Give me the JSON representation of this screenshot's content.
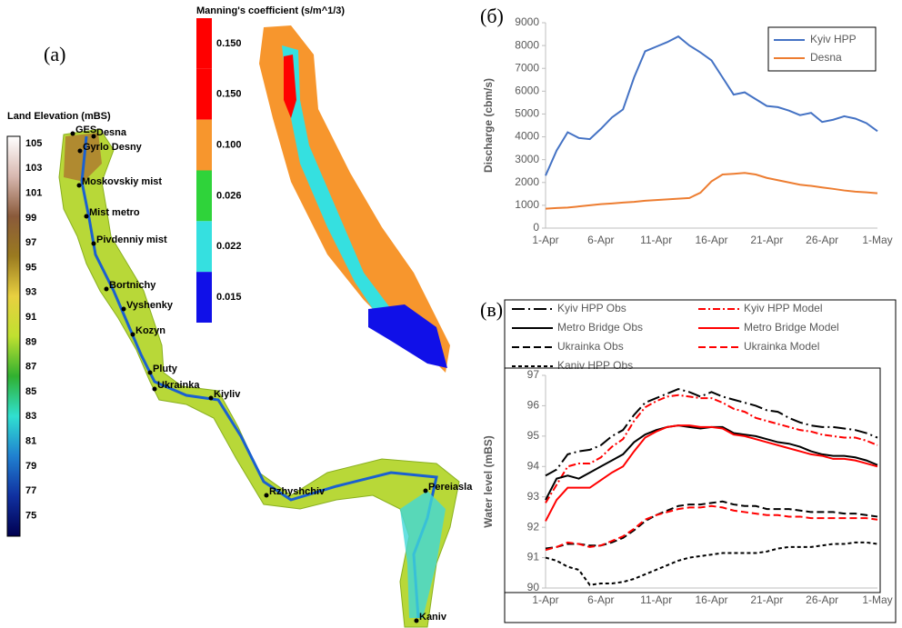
{
  "panel_labels": [
    "(a)",
    "(б)",
    "(в)"
  ],
  "elevation_map": {
    "title": "Land Elevation (mBS)",
    "legend_ticks": [
      105,
      103,
      101,
      99,
      97,
      95,
      93,
      91,
      89,
      87,
      85,
      83,
      81,
      79,
      77,
      75
    ],
    "places": [
      "GES",
      "Desna",
      "Gyrlo Desny",
      "Moskovskiy mist",
      "Mist metro",
      "Pivdenniy mist",
      "Bortnichy",
      "Vyshenky",
      "Kozyn",
      "Pluty",
      "Ukrainka",
      "Kiyliv",
      "Rzhyshchiv",
      "Pereiasla",
      "Kaniv"
    ]
  },
  "manning_map": {
    "title": "Manning's coefficient (s/m^1/3)",
    "legend": [
      {
        "label": "0.150",
        "color": "#ff0000"
      },
      {
        "label": "0.150",
        "color": "#ff0000"
      },
      {
        "label": "0.100",
        "color": "#f7962d"
      },
      {
        "label": "0.026",
        "color": "#2fd33a"
      },
      {
        "label": "0.022",
        "color": "#35e0e0"
      },
      {
        "label": "0.015",
        "color": "#1010e8"
      }
    ]
  },
  "chart_data": [
    {
      "type": "line",
      "ylabel": "Discharge (cbm/s)",
      "legend": "upper right",
      "categories": [
        "1-Apr",
        null,
        null,
        null,
        null,
        "6-Apr",
        null,
        null,
        null,
        null,
        "11-Apr",
        null,
        null,
        null,
        null,
        "16-Apr",
        null,
        null,
        null,
        null,
        "21-Apr",
        null,
        null,
        null,
        null,
        "26-Apr",
        null,
        null,
        null,
        null,
        "1-May"
      ],
      "ylim": [
        0,
        9000
      ],
      "yticks": [
        0,
        1000,
        2000,
        3000,
        4000,
        5000,
        6000,
        7000,
        8000,
        9000
      ],
      "series": [
        {
          "name": "Kyiv HPP",
          "color": "#4472c4",
          "dash": "solid",
          "values": [
            2300,
            3400,
            4200,
            3950,
            3900,
            4350,
            4850,
            5200,
            6600,
            7750,
            7950,
            8150,
            8400,
            8000,
            7700,
            7350,
            6600,
            5850,
            5950,
            5650,
            5350,
            5300,
            5150,
            4950,
            5050,
            4650,
            4750,
            4900,
            4800,
            4600,
            4250
          ]
        },
        {
          "name": "Desna",
          "color": "#ed7d31",
          "dash": "solid",
          "values": [
            850,
            880,
            900,
            950,
            1000,
            1050,
            1080,
            1120,
            1150,
            1200,
            1230,
            1260,
            1290,
            1320,
            1550,
            2050,
            2350,
            2380,
            2420,
            2350,
            2200,
            2100,
            2000,
            1900,
            1850,
            1780,
            1720,
            1650,
            1600,
            1570,
            1530
          ]
        }
      ]
    },
    {
      "type": "line",
      "ylabel": "Water level (mBS)",
      "legend": "above",
      "categories": [
        "1-Apr",
        null,
        null,
        null,
        null,
        "6-Apr",
        null,
        null,
        null,
        null,
        "11-Apr",
        null,
        null,
        null,
        null,
        "16-Apr",
        null,
        null,
        null,
        null,
        "21-Apr",
        null,
        null,
        null,
        null,
        "26-Apr",
        null,
        null,
        null,
        null,
        "1-May"
      ],
      "ylim": [
        90,
        97
      ],
      "yticks": [
        90,
        91,
        92,
        93,
        94,
        95,
        96,
        97
      ],
      "series": [
        {
          "name": "Kyiv HPP Obs",
          "color": "#000000",
          "dash": "long-dash-dot",
          "values": [
            93.7,
            93.9,
            94.4,
            94.5,
            94.55,
            94.7,
            95.0,
            95.2,
            95.7,
            96.1,
            96.25,
            96.4,
            96.55,
            96.45,
            96.3,
            96.45,
            96.3,
            96.2,
            96.1,
            96.0,
            95.85,
            95.8,
            95.6,
            95.45,
            95.35,
            95.3,
            95.3,
            95.25,
            95.2,
            95.1,
            94.95
          ]
        },
        {
          "name": "Kyiv HPP Model",
          "color": "#ff0000",
          "dash": "dash-dot",
          "values": [
            92.8,
            93.4,
            94.0,
            94.1,
            94.1,
            94.3,
            94.65,
            94.9,
            95.5,
            95.95,
            96.15,
            96.3,
            96.35,
            96.3,
            96.25,
            96.25,
            96.1,
            95.9,
            95.8,
            95.6,
            95.5,
            95.4,
            95.3,
            95.2,
            95.15,
            95.05,
            95.0,
            94.95,
            94.95,
            94.85,
            94.7
          ]
        },
        {
          "name": "Metro Bridge Obs",
          "color": "#000000",
          "dash": "solid",
          "values": [
            92.9,
            93.6,
            93.7,
            93.6,
            93.8,
            94.0,
            94.2,
            94.4,
            94.8,
            95.05,
            95.2,
            95.3,
            95.35,
            95.3,
            95.25,
            95.3,
            95.3,
            95.1,
            95.05,
            95.0,
            94.9,
            94.8,
            94.75,
            94.65,
            94.5,
            94.4,
            94.35,
            94.35,
            94.3,
            94.2,
            94.05
          ]
        },
        {
          "name": "Metro Bridge Model",
          "color": "#ff0000",
          "dash": "solid",
          "values": [
            92.2,
            92.9,
            93.3,
            93.3,
            93.3,
            93.55,
            93.8,
            94.0,
            94.5,
            94.95,
            95.15,
            95.3,
            95.35,
            95.35,
            95.3,
            95.3,
            95.25,
            95.05,
            95.0,
            94.9,
            94.8,
            94.7,
            94.6,
            94.5,
            94.4,
            94.35,
            94.25,
            94.25,
            94.2,
            94.1,
            94.0
          ]
        },
        {
          "name": "Ukrainka Obs",
          "color": "#000000",
          "dash": "dash",
          "values": [
            91.3,
            91.35,
            91.45,
            91.45,
            91.4,
            91.4,
            91.5,
            91.65,
            91.9,
            92.2,
            92.4,
            92.55,
            92.7,
            92.75,
            92.75,
            92.8,
            92.85,
            92.75,
            92.7,
            92.7,
            92.6,
            92.6,
            92.6,
            92.55,
            92.5,
            92.5,
            92.5,
            92.45,
            92.45,
            92.4,
            92.35
          ]
        },
        {
          "name": "Ukrainka Model",
          "color": "#ff0000",
          "dash": "dash",
          "values": [
            91.25,
            91.35,
            91.5,
            91.45,
            91.35,
            91.4,
            91.55,
            91.7,
            91.95,
            92.25,
            92.4,
            92.5,
            92.6,
            92.65,
            92.65,
            92.7,
            92.65,
            92.55,
            92.5,
            92.45,
            92.4,
            92.4,
            92.35,
            92.35,
            92.3,
            92.3,
            92.3,
            92.3,
            92.3,
            92.3,
            92.25
          ]
        },
        {
          "name": "Kaniv HPP Obs",
          "color": "#000000",
          "dash": "short-dash",
          "values": [
            91.0,
            90.9,
            90.7,
            90.6,
            90.1,
            90.15,
            90.15,
            90.2,
            90.3,
            90.45,
            90.6,
            90.75,
            90.9,
            91.0,
            91.05,
            91.1,
            91.15,
            91.15,
            91.15,
            91.15,
            91.2,
            91.3,
            91.35,
            91.35,
            91.35,
            91.4,
            91.45,
            91.45,
            91.5,
            91.5,
            91.45
          ]
        }
      ]
    }
  ]
}
